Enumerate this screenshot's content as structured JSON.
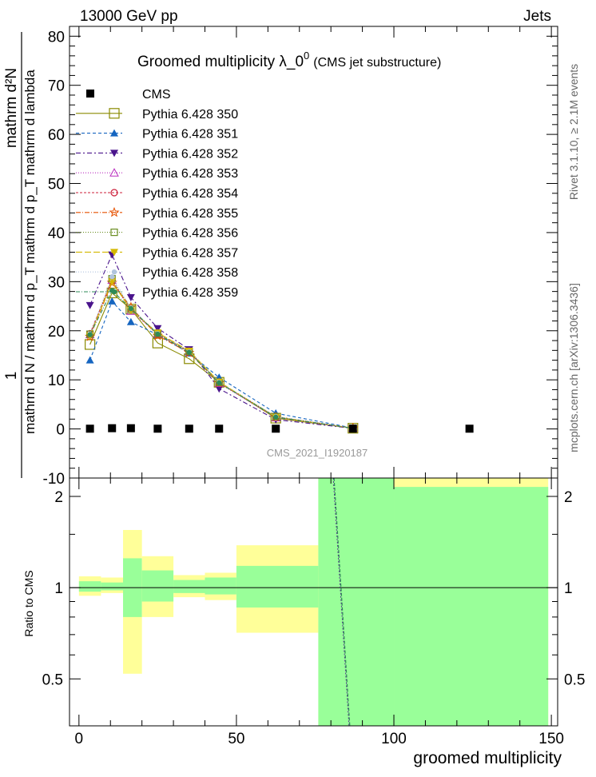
{
  "header": {
    "left": "13000 GeV pp",
    "right": "Jets"
  },
  "side_labels": {
    "rivet": "Rivet 3.1.10, ≥ 2.1M events",
    "mcplots": "mcplots.cern.ch [arXiv:1306.3436]"
  },
  "chart_data": {
    "type": "line",
    "title": "Groomed multiplicity  λ_0",
    "title_sup": "0",
    "subtitle": "(CMS jet substructure)",
    "analysis": "CMS_2021_I1920187",
    "ylabel_num": "1",
    "ylabel_den": "mathrm d N / mathrm d p_T mathrm d p_T mathrm d lambda",
    "ylabel_right": "mathrm d²N",
    "xlabel": "groomed multiplicity",
    "xlim": [
      -3,
      152
    ],
    "ylim": [
      -10,
      82
    ],
    "xticks": [
      0,
      50,
      100,
      150
    ],
    "yticks": [
      -10,
      0,
      10,
      20,
      30,
      40,
      50,
      60,
      70,
      80
    ],
    "ratio": {
      "ylabel": "Ratio to CMS",
      "ylim": [
        0.35,
        2.3
      ],
      "yticks": [
        0.5,
        1,
        2
      ],
      "bins": [
        {
          "x0": 0,
          "x1": 7,
          "green": [
            0.97,
            1.05
          ],
          "yellow": [
            0.94,
            1.09
          ]
        },
        {
          "x0": 7,
          "x1": 14,
          "green": [
            0.98,
            1.04
          ],
          "yellow": [
            0.96,
            1.08
          ]
        },
        {
          "x0": 14,
          "x1": 20,
          "green": [
            0.8,
            1.25
          ],
          "yellow": [
            0.52,
            1.55
          ]
        },
        {
          "x0": 20,
          "x1": 30,
          "green": [
            0.9,
            1.14
          ],
          "yellow": [
            0.8,
            1.27
          ]
        },
        {
          "x0": 30,
          "x1": 40,
          "green": [
            0.96,
            1.06
          ],
          "yellow": [
            0.93,
            1.1
          ]
        },
        {
          "x0": 40,
          "x1": 50,
          "green": [
            0.95,
            1.08
          ],
          "yellow": [
            0.91,
            1.12
          ]
        },
        {
          "x0": 50,
          "x1": 76,
          "green": [
            0.86,
            1.18
          ],
          "yellow": [
            0.71,
            1.38
          ]
        },
        {
          "x0": 76,
          "x1": 100,
          "green": [
            0.35,
            2.3
          ],
          "yellow": [
            0.35,
            2.3
          ]
        },
        {
          "x0": 100,
          "x1": 149,
          "green": [
            0.35,
            2.15
          ],
          "yellow": [
            0.35,
            2.3
          ]
        }
      ],
      "curve": [
        [
          81,
          2.3
        ],
        [
          86,
          0.35
        ]
      ]
    },
    "data": {
      "name": "CMS",
      "x": [
        3.5,
        10.5,
        16.5,
        25,
        35,
        44.5,
        62.5,
        87,
        124
      ],
      "y": [
        0.05,
        0.15,
        0.15,
        0.05,
        0.05,
        0.05,
        0.05,
        0.05,
        0.05
      ]
    },
    "series_x": [
      3.5,
      10.5,
      16.5,
      25,
      35,
      44.5,
      62.5,
      87
    ],
    "series": [
      {
        "name": "Pythia 6.428 350",
        "color": "#8a8a00",
        "dash": "",
        "marker": "square-open",
        "y": [
          17.2,
          27.7,
          24.4,
          17.5,
          14.3,
          9.5,
          2.2,
          0.15
        ]
      },
      {
        "name": "Pythia 6.428 351",
        "color": "#1565c0",
        "dash": "4,3",
        "marker": "triangle-up",
        "y": [
          14.0,
          26.0,
          21.8,
          19.2,
          15.4,
          10.5,
          3.2,
          0.2
        ]
      },
      {
        "name": "Pythia 6.428 352",
        "color": "#4a148c",
        "dash": "6,3,2,3",
        "marker": "triangle-down",
        "y": [
          25.2,
          35.5,
          26.8,
          20.5,
          16.2,
          8.2,
          1.9,
          0.12
        ]
      },
      {
        "name": "Pythia 6.428 353",
        "color": "#ba2fc0",
        "dash": "1,2",
        "marker": "triangle-open",
        "y": [
          19.2,
          30.3,
          24.0,
          19.4,
          15.7,
          9.3,
          2.3,
          0.15
        ]
      },
      {
        "name": "Pythia 6.428 354",
        "color": "#cc1f3a",
        "dash": "3,2",
        "marker": "circle-open",
        "y": [
          19.4,
          30.2,
          24.3,
          19.3,
          15.8,
          9.4,
          2.5,
          0.15
        ]
      },
      {
        "name": "Pythia 6.428 355",
        "color": "#e65100",
        "dash": "6,2,1,2",
        "marker": "star",
        "y": [
          18.8,
          29.8,
          24.8,
          19.0,
          15.5,
          9.4,
          2.4,
          0.15
        ]
      },
      {
        "name": "Pythia 6.428 356",
        "color": "#6b8e23",
        "dash": "1,2",
        "marker": "square-open-small",
        "y": [
          19.3,
          30.6,
          24.4,
          19.5,
          15.8,
          9.5,
          2.5,
          0.15
        ]
      },
      {
        "name": "Pythia 6.428 357",
        "color": "#d4b800",
        "dash": "8,3",
        "marker": "triangle-down",
        "y": [
          19.0,
          30.0,
          24.2,
          19.6,
          15.9,
          9.6,
          2.4,
          0.15
        ]
      },
      {
        "name": "Pythia 6.428 358",
        "color": "#b0c4de",
        "dash": "1,2",
        "marker": "dot",
        "y": [
          19.3,
          31.0,
          24.6,
          19.4,
          15.7,
          9.5,
          2.5,
          0.15
        ]
      },
      {
        "name": "Pythia 6.428 359",
        "color": "#2e8b57",
        "dash": "5,2,1,2",
        "marker": "dot",
        "y": [
          19.2,
          28.2,
          24.5,
          19.3,
          15.6,
          9.4,
          2.4,
          0.15
        ]
      }
    ]
  }
}
